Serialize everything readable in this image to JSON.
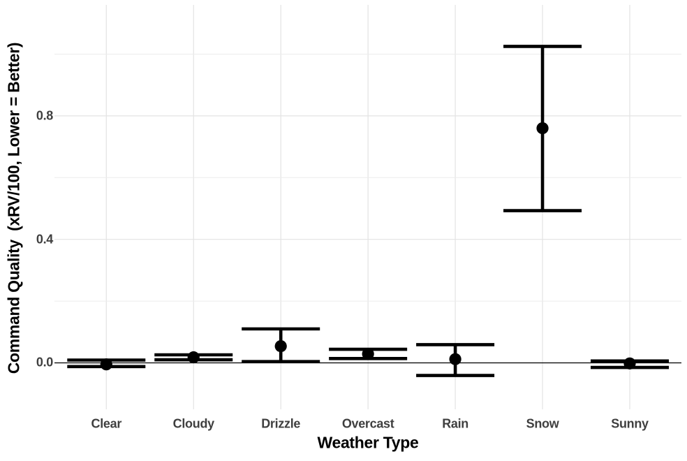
{
  "chart_data": {
    "type": "scatter",
    "subtype": "pointrange-with-errorbars",
    "xlabel": "Weather Type",
    "ylabel": "Command Quality  (xRV/100, Lower = Better)",
    "categories": [
      "Clear",
      "Cloudy",
      "Drizzle",
      "Overcast",
      "Rain",
      "Snow",
      "Sunny"
    ],
    "series": [
      {
        "name": "Command Quality (xRV/100)",
        "points": [
          {
            "category": "Clear",
            "value": -0.005,
            "ci_low": -0.012,
            "ci_high": 0.009
          },
          {
            "category": "Cloudy",
            "value": 0.018,
            "ci_low": 0.01,
            "ci_high": 0.026
          },
          {
            "category": "Drizzle",
            "value": 0.054,
            "ci_low": 0.004,
            "ci_high": 0.11
          },
          {
            "category": "Overcast",
            "value": 0.029,
            "ci_low": 0.014,
            "ci_high": 0.044
          },
          {
            "category": "Rain",
            "value": 0.012,
            "ci_low": -0.041,
            "ci_high": 0.059
          },
          {
            "category": "Snow",
            "value": 0.76,
            "ci_low": 0.493,
            "ci_high": 1.025
          },
          {
            "category": "Sunny",
            "value": -0.002,
            "ci_low": -0.015,
            "ci_high": 0.006
          }
        ]
      }
    ],
    "ytick_labels": [
      "0.0",
      "0.4",
      "0.8"
    ],
    "yticks_major": [
      0.0,
      0.4,
      0.8
    ],
    "yticks_minor": [
      0.2,
      0.6,
      1.0
    ],
    "ylim": [
      -0.1505,
      1.1595
    ],
    "reference_line_y": 0,
    "grid": true,
    "legend": false,
    "colors": {
      "marker": "#000000",
      "reference_line": "#000000",
      "grid_major": "#e3e3e3",
      "grid_minor": "#ececec",
      "tick_text": "#3f3f3f",
      "title_text": "#000000",
      "background": "#ffffff"
    }
  }
}
